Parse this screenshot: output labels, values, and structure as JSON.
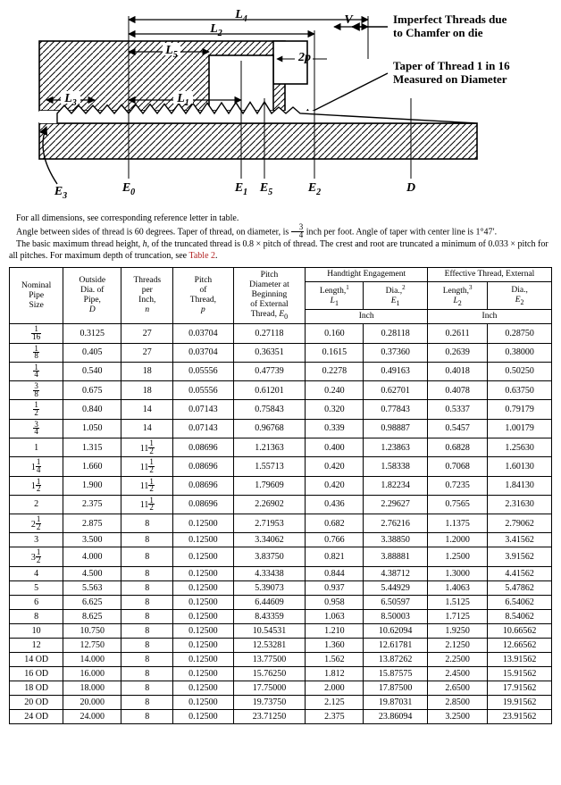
{
  "diagram": {
    "stroke": "#000000",
    "fill_hatch": "#000000",
    "background": "#ffffff",
    "annot1_line1": "Imperfect Threads due",
    "annot1_line2": "to Chamfer on die",
    "annot2_line1": "Taper of Thread 1 in 16",
    "annot2_line2": "Measured on Diameter",
    "labels": {
      "L4": "L",
      "L4s": "4",
      "L2": "L",
      "L2s": "2",
      "L5": "L",
      "L5s": "5",
      "L3": "L",
      "L3s": "3",
      "L1": "L",
      "L1s": "1",
      "V": "V",
      "p2": "2p",
      "E3": "E",
      "E3s": "3",
      "E0": "E",
      "E0s": "0",
      "E1": "E",
      "E1s": "1",
      "E5": "E",
      "E5s": "5",
      "E2": "E",
      "E2s": "2",
      "D": "D"
    }
  },
  "notes": {
    "p1": "For all dimensions, see corresponding reference letter in table.",
    "p2a": "Angle between sides of thread is 60 degrees. Taper of thread, on diameter, is ",
    "p2_frac_n": "3",
    "p2_frac_d": "4",
    "p2b": " inch per foot. Angle of taper with center line is 1°47′.",
    "p3a": "The basic maximum thread height, ",
    "p3h": "h",
    "p3b": ", of the truncated thread is 0.8 × pitch of thread. The crest and root are truncated a minimum of 0.033 × pitch for all pitches. For maximum depth of truncation, see ",
    "p3ref": "Table 2",
    "p3c": "."
  },
  "table": {
    "head": {
      "nps_l1": "Nominal",
      "nps_l2": "Pipe",
      "nps_l3": "Size",
      "d_l1": "Outside",
      "d_l2": "Dia. of",
      "d_l3": "Pipe,",
      "d_sym": "D",
      "n_l1": "Threads",
      "n_l2": "per",
      "n_l3": "Inch,",
      "n_sym": "n",
      "p_l1": "Pitch",
      "p_l2": "of",
      "p_l3": "Thread,",
      "p_sym": "p",
      "e0_l1": "Pitch",
      "e0_l2": "Diameter at",
      "e0_l3": "Beginning",
      "e0_l4": "of External",
      "e0_l5": "Thread, ",
      "e0_sym": "E",
      "e0_sub": "0",
      "ht": "Handtight Engagement",
      "et": "Effective Thread, External",
      "l1_a": "Length,",
      "l1_sup": "1",
      "l1_sym": "L",
      "l1_sub": "1",
      "e1_a": "Dia.,",
      "e1_sup": "2",
      "e1_sym": "E",
      "e1_sub": "1",
      "l2_a": "Length,",
      "l2_sup": "3",
      "l2_sym": "L",
      "l2_sub": "2",
      "e2_a": "Dia.,",
      "e2_sym": "E",
      "e2_sub": "2",
      "inch": "Inch"
    },
    "rows": [
      {
        "nps_n": "1",
        "nps_d": "16",
        "D": "0.3125",
        "n": "27",
        "p": "0.03704",
        "E0": "0.27118",
        "L1": "0.160",
        "E1": "0.28118",
        "L2": "0.2611",
        "E2": "0.28750"
      },
      {
        "nps_n": "1",
        "nps_d": "8",
        "D": "0.405",
        "n": "27",
        "p": "0.03704",
        "E0": "0.36351",
        "L1": "0.1615",
        "E1": "0.37360",
        "L2": "0.2639",
        "E2": "0.38000"
      },
      {
        "nps_n": "1",
        "nps_d": "4",
        "D": "0.540",
        "n": "18",
        "p": "0.05556",
        "E0": "0.47739",
        "L1": "0.2278",
        "E1": "0.49163",
        "L2": "0.4018",
        "E2": "0.50250"
      },
      {
        "nps_n": "3",
        "nps_d": "8",
        "D": "0.675",
        "n": "18",
        "p": "0.05556",
        "E0": "0.61201",
        "L1": "0.240",
        "E1": "0.62701",
        "L2": "0.4078",
        "E2": "0.63750"
      },
      {
        "nps_n": "1",
        "nps_d": "2",
        "D": "0.840",
        "n": "14",
        "p": "0.07143",
        "E0": "0.75843",
        "L1": "0.320",
        "E1": "0.77843",
        "L2": "0.5337",
        "E2": "0.79179"
      },
      {
        "nps_n": "3",
        "nps_d": "4",
        "D": "1.050",
        "n": "14",
        "p": "0.07143",
        "E0": "0.96768",
        "L1": "0.339",
        "E1": "0.98887",
        "L2": "0.5457",
        "E2": "1.00179"
      },
      {
        "nps_w": "1",
        "D": "1.315",
        "n_w": "11",
        "n_n": "1",
        "n_d": "2",
        "p": "0.08696",
        "E0": "1.21363",
        "L1": "0.400",
        "E1": "1.23863",
        "L2": "0.6828",
        "E2": "1.25630"
      },
      {
        "nps_w": "1",
        "nps_n": "1",
        "nps_d": "4",
        "D": "1.660",
        "n_w": "11",
        "n_n": "1",
        "n_d": "2",
        "p": "0.08696",
        "E0": "1.55713",
        "L1": "0.420",
        "E1": "1.58338",
        "L2": "0.7068",
        "E2": "1.60130"
      },
      {
        "nps_w": "1",
        "nps_n": "1",
        "nps_d": "2",
        "D": "1.900",
        "n_w": "11",
        "n_n": "1",
        "n_d": "2",
        "p": "0.08696",
        "E0": "1.79609",
        "L1": "0.420",
        "E1": "1.82234",
        "L2": "0.7235",
        "E2": "1.84130"
      },
      {
        "nps_w": "2",
        "D": "2.375",
        "n_w": "11",
        "n_n": "1",
        "n_d": "2",
        "p": "0.08696",
        "E0": "2.26902",
        "L1": "0.436",
        "E1": "2.29627",
        "L2": "0.7565",
        "E2": "2.31630"
      },
      {
        "nps_w": "2",
        "nps_n": "1",
        "nps_d": "2",
        "D": "2.875",
        "n": "8",
        "p": "0.12500",
        "E0": "2.71953",
        "L1": "0.682",
        "E1": "2.76216",
        "L2": "1.1375",
        "E2": "2.79062"
      },
      {
        "nps_w": "3",
        "D": "3.500",
        "n": "8",
        "p": "0.12500",
        "E0": "3.34062",
        "L1": "0.766",
        "E1": "3.38850",
        "L2": "1.2000",
        "E2": "3.41562"
      },
      {
        "nps_w": "3",
        "nps_n": "1",
        "nps_d": "2",
        "D": "4.000",
        "n": "8",
        "p": "0.12500",
        "E0": "3.83750",
        "L1": "0.821",
        "E1": "3.88881",
        "L2": "1.2500",
        "E2": "3.91562"
      },
      {
        "nps_w": "4",
        "D": "4.500",
        "n": "8",
        "p": "0.12500",
        "E0": "4.33438",
        "L1": "0.844",
        "E1": "4.38712",
        "L2": "1.3000",
        "E2": "4.41562"
      },
      {
        "nps_w": "5",
        "D": "5.563",
        "n": "8",
        "p": "0.12500",
        "E0": "5.39073",
        "L1": "0.937",
        "E1": "5.44929",
        "L2": "1.4063",
        "E2": "5.47862"
      },
      {
        "nps_w": "6",
        "D": "6.625",
        "n": "8",
        "p": "0.12500",
        "E0": "6.44609",
        "L1": "0.958",
        "E1": "6.50597",
        "L2": "1.5125",
        "E2": "6.54062"
      },
      {
        "nps_w": "8",
        "D": "8.625",
        "n": "8",
        "p": "0.12500",
        "E0": "8.43359",
        "L1": "1.063",
        "E1": "8.50003",
        "L2": "1.7125",
        "E2": "8.54062"
      },
      {
        "nps_w": "10",
        "D": "10.750",
        "n": "8",
        "p": "0.12500",
        "E0": "10.54531",
        "L1": "1.210",
        "E1": "10.62094",
        "L2": "1.9250",
        "E2": "10.66562"
      },
      {
        "nps_w": "12",
        "D": "12.750",
        "n": "8",
        "p": "0.12500",
        "E0": "12.53281",
        "L1": "1.360",
        "E1": "12.61781",
        "L2": "2.1250",
        "E2": "12.66562"
      },
      {
        "nps_w": "14 OD",
        "D": "14.000",
        "n": "8",
        "p": "0.12500",
        "E0": "13.77500",
        "L1": "1.562",
        "E1": "13.87262",
        "L2": "2.2500",
        "E2": "13.91562"
      },
      {
        "nps_w": "16 OD",
        "D": "16.000",
        "n": "8",
        "p": "0.12500",
        "E0": "15.76250",
        "L1": "1.812",
        "E1": "15.87575",
        "L2": "2.4500",
        "E2": "15.91562"
      },
      {
        "nps_w": "18 OD",
        "D": "18.000",
        "n": "8",
        "p": "0.12500",
        "E0": "17.75000",
        "L1": "2.000",
        "E1": "17.87500",
        "L2": "2.6500",
        "E2": "17.91562"
      },
      {
        "nps_w": "20 OD",
        "D": "20.000",
        "n": "8",
        "p": "0.12500",
        "E0": "19.73750",
        "L1": "2.125",
        "E1": "19.87031",
        "L2": "2.8500",
        "E2": "19.91562"
      },
      {
        "nps_w": "24 OD",
        "D": "24.000",
        "n": "8",
        "p": "0.12500",
        "E0": "23.71250",
        "L1": "2.375",
        "E1": "23.86094",
        "L2": "3.2500",
        "E2": "23.91562"
      }
    ]
  }
}
